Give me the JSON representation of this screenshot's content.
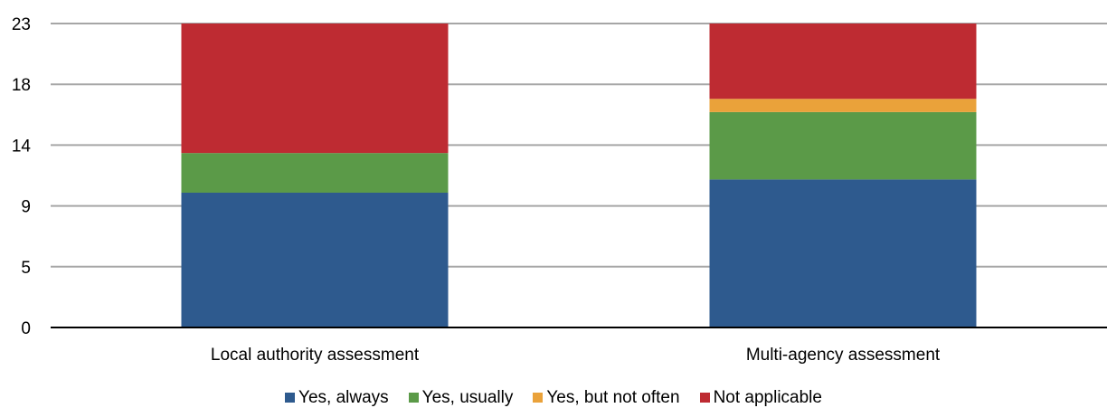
{
  "chart_data": {
    "type": "bar",
    "stacked": true,
    "categories": [
      "Local authority assessment",
      "Multi-agency assessment"
    ],
    "series": [
      {
        "name": "Yes, always",
        "color": "#2E5A8E",
        "values": [
          10.2,
          11.2
        ]
      },
      {
        "name": "Yes, usually",
        "color": "#5B9A48",
        "values": [
          3.0,
          5.1
        ]
      },
      {
        "name": "Yes, but not often",
        "color": "#EAA23A",
        "values": [
          0,
          1.0
        ]
      },
      {
        "name": "Not applicable",
        "color": "#BE2B32",
        "values": [
          9.8,
          5.7
        ]
      }
    ],
    "yticks": [
      "0",
      "5",
      "9",
      "14",
      "18",
      "23"
    ],
    "ylim": [
      0,
      23
    ],
    "grid": true,
    "legend_position": "bottom"
  }
}
